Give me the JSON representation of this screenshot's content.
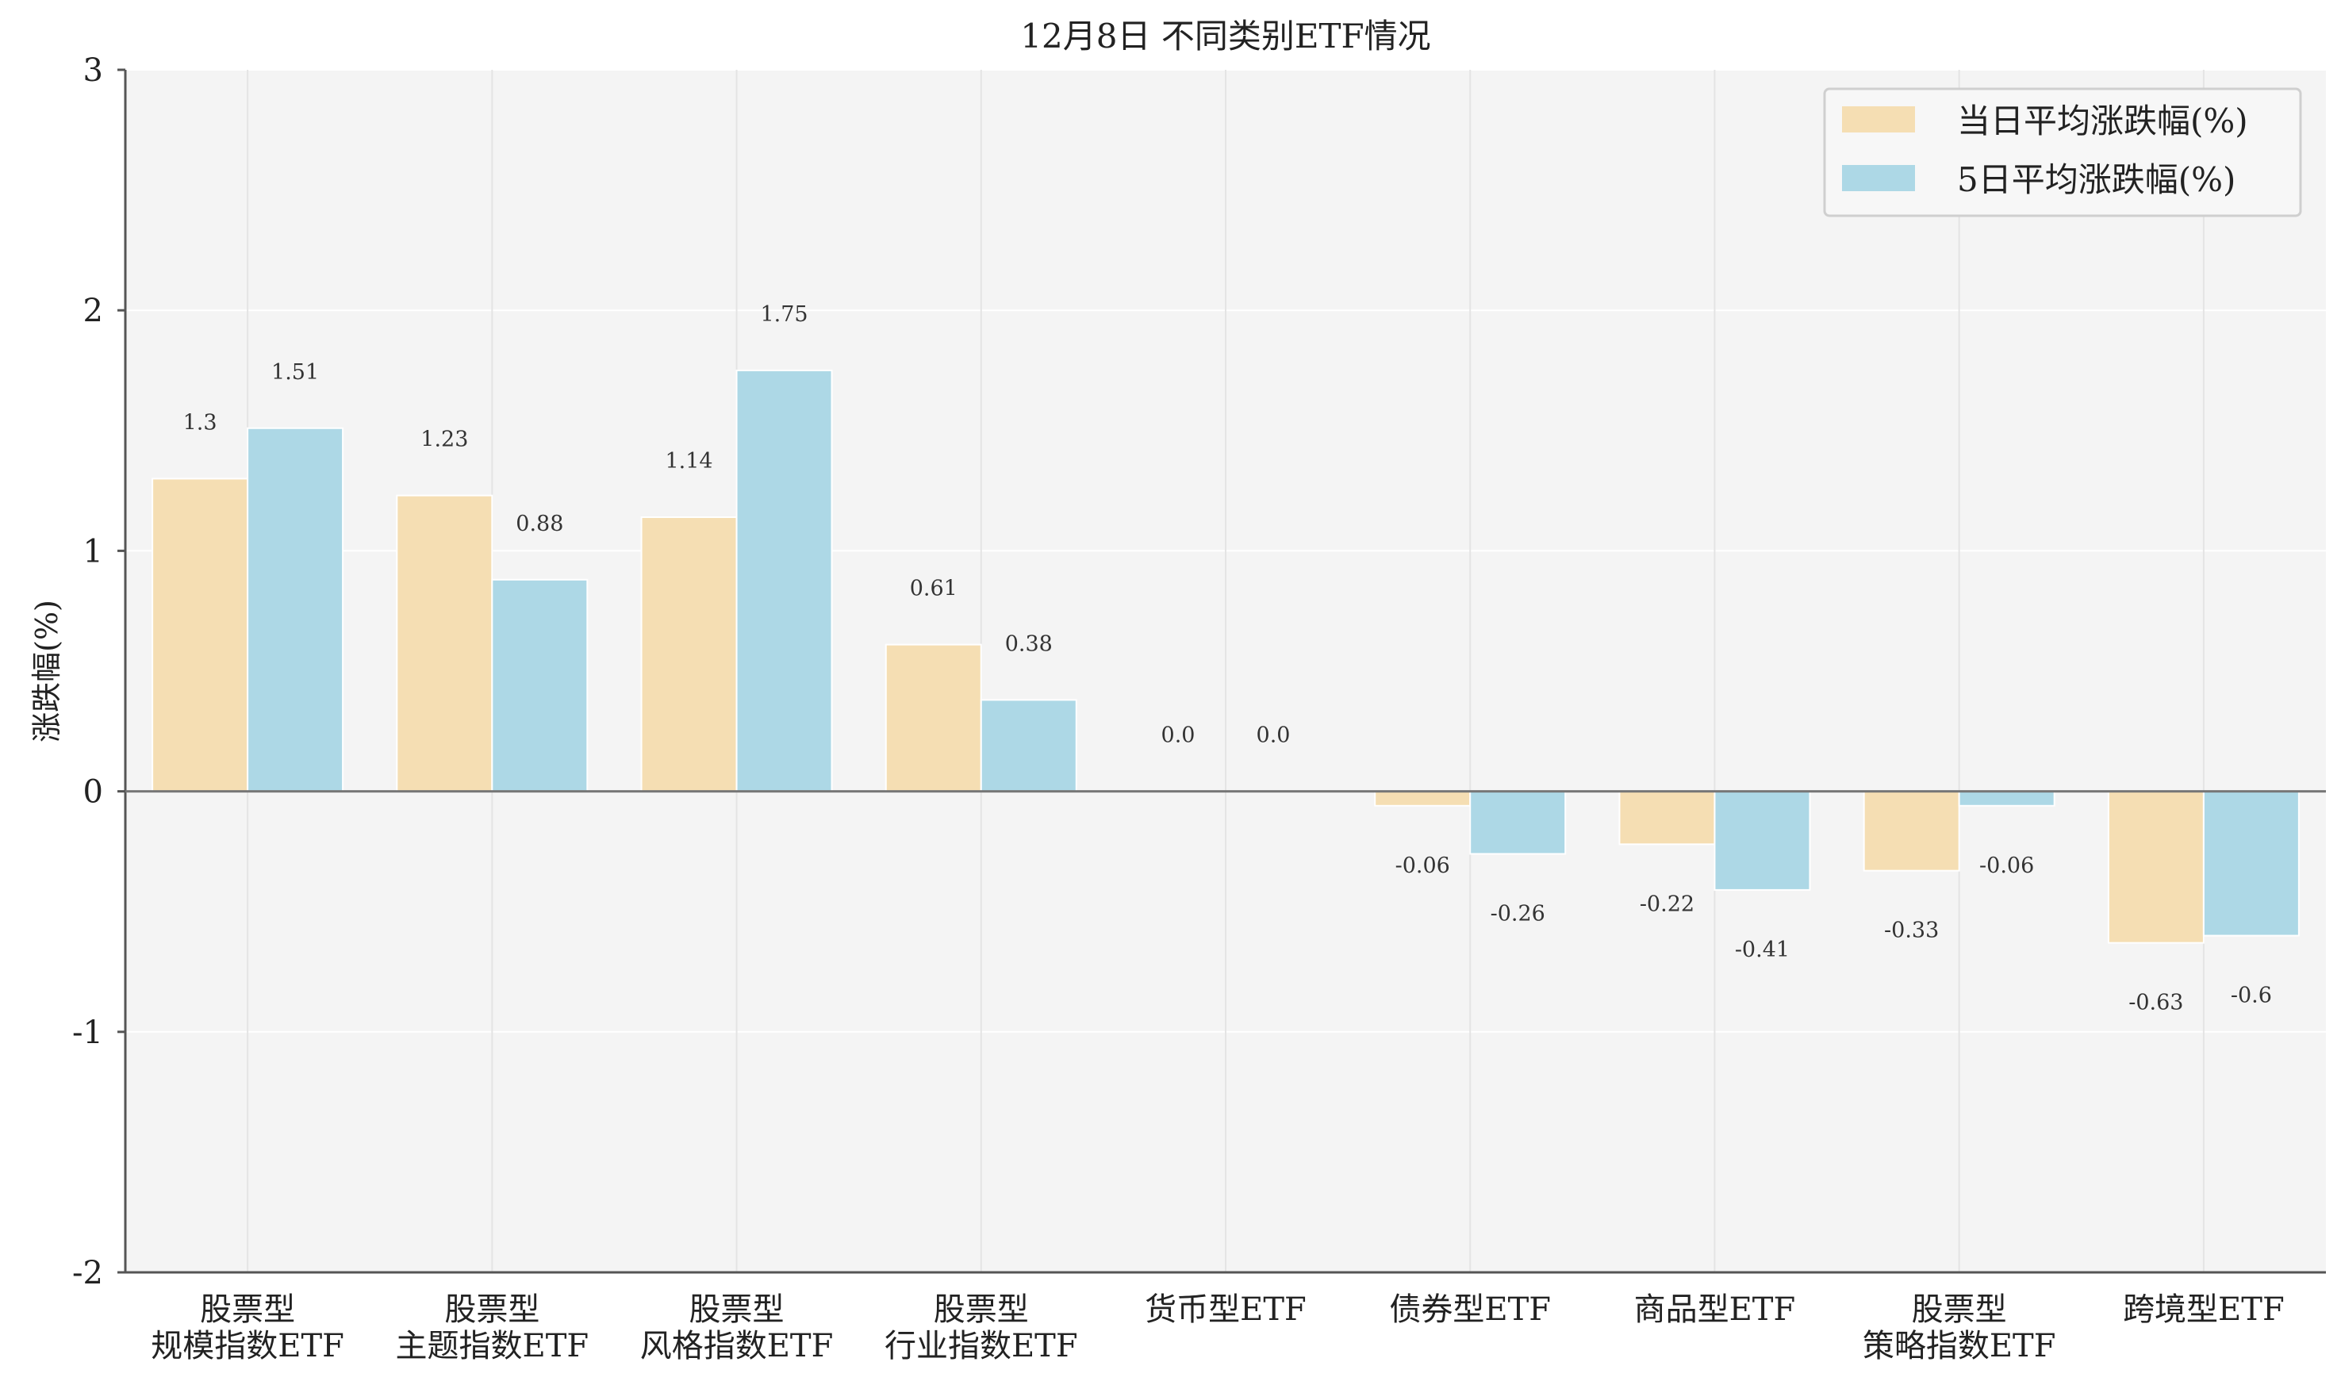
{
  "chart_data": {
    "type": "bar",
    "title": "12月8日 不同类别ETF情况",
    "xlabel": "",
    "ylabel": "涨跌幅(%)",
    "ylim": [
      -2,
      3
    ],
    "yticks": [
      "3",
      "2",
      "1",
      "0",
      "-1",
      "-2"
    ],
    "grid": true,
    "legend_position": "top-right",
    "categories": [
      [
        "股票型",
        "规模指数ETF"
      ],
      [
        "股票型",
        "主题指数ETF"
      ],
      [
        "股票型",
        "风格指数ETF"
      ],
      [
        "股票型",
        "行业指数ETF"
      ],
      [
        "货币型ETF"
      ],
      [
        "债券型ETF"
      ],
      [
        "商品型ETF"
      ],
      [
        "股票型",
        "策略指数ETF"
      ],
      [
        "跨境型ETF"
      ]
    ],
    "series": [
      {
        "name": "当日平均涨跌幅(%)",
        "color": "#f5deb3",
        "values": [
          1.3,
          1.23,
          1.14,
          0.61,
          0.0,
          -0.06,
          -0.22,
          -0.33,
          -0.63
        ],
        "labels": [
          "1.3",
          "1.23",
          "1.14",
          "0.61",
          "0.0",
          "-0.06",
          "-0.22",
          "-0.33",
          "-0.63"
        ]
      },
      {
        "name": "5日平均涨跌幅(%)",
        "color": "#add8e6",
        "values": [
          1.51,
          0.88,
          1.75,
          0.38,
          0.0,
          -0.26,
          -0.41,
          -0.06,
          -0.6
        ],
        "labels": [
          "1.51",
          "0.88",
          "1.75",
          "0.38",
          "0.0",
          "-0.26",
          "-0.41",
          "-0.06",
          "-0.6"
        ]
      }
    ]
  }
}
